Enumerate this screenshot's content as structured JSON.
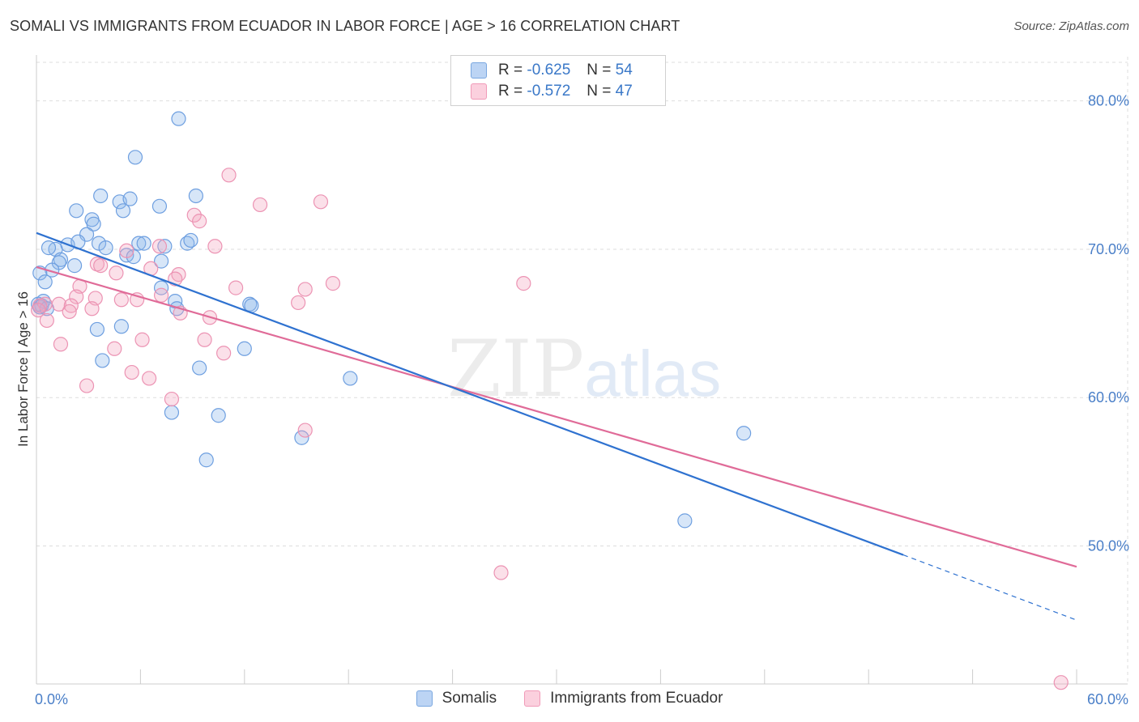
{
  "header": {
    "title": "SOMALI VS IMMIGRANTS FROM ECUADOR IN LABOR FORCE | AGE > 16 CORRELATION CHART",
    "source": "Source: ZipAtlas.com"
  },
  "legend_top": {
    "rows": [
      {
        "r_label": "R =",
        "r_value": "-0.625",
        "n_label": "N =",
        "n_value": "54"
      },
      {
        "r_label": "R =",
        "r_value": "-0.572",
        "n_label": "N =",
        "n_value": "47"
      }
    ]
  },
  "legend_bottom": {
    "items": [
      {
        "label": "Somalis"
      },
      {
        "label": "Immigrants from Ecuador"
      }
    ]
  },
  "watermark": {
    "zip": "ZIP",
    "atlas": "atlas"
  },
  "chart_data": {
    "type": "scatter",
    "ylabel": "In Labor Force | Age > 16",
    "xlabel": "",
    "xlim": [
      0,
      60
    ],
    "ylim": [
      40.7,
      82.6
    ],
    "x_tick_labels": [
      {
        "value": 0,
        "label": "0.0%"
      },
      {
        "value": 60,
        "label": "60.0%"
      }
    ],
    "y_tick_labels": [
      {
        "value": 50,
        "label": "50.0%"
      },
      {
        "value": 60,
        "label": "60.0%"
      },
      {
        "value": 70,
        "label": "70.0%"
      },
      {
        "value": 80,
        "label": "80.0%"
      }
    ],
    "grid": true,
    "legend_position": "top-center",
    "colors": {
      "somalis": "#8db8ec",
      "ecuador": "#f4a5c0",
      "somalis_line": "#2f72d0",
      "ecuador_line": "#e06b98"
    },
    "series": [
      {
        "name": "Somalis",
        "trend": {
          "x": [
            0,
            50
          ],
          "y": [
            71.1,
            49.4
          ],
          "dashed_to": [
            60,
            45.0
          ]
        },
        "points": [
          [
            8.2,
            78.8
          ],
          [
            5.7,
            76.2
          ],
          [
            3.7,
            73.6
          ],
          [
            4.8,
            73.2
          ],
          [
            5.4,
            73.4
          ],
          [
            7.1,
            72.9
          ],
          [
            9.2,
            73.6
          ],
          [
            2.3,
            72.6
          ],
          [
            5.0,
            72.6
          ],
          [
            3.2,
            72.0
          ],
          [
            3.3,
            71.7
          ],
          [
            2.9,
            71.0
          ],
          [
            1.8,
            70.3
          ],
          [
            2.4,
            70.5
          ],
          [
            3.6,
            70.4
          ],
          [
            5.9,
            70.4
          ],
          [
            6.2,
            70.4
          ],
          [
            7.4,
            70.2
          ],
          [
            8.7,
            70.4
          ],
          [
            8.9,
            70.6
          ],
          [
            1.1,
            70.0
          ],
          [
            0.7,
            70.1
          ],
          [
            4.0,
            70.1
          ],
          [
            5.2,
            69.6
          ],
          [
            5.6,
            69.5
          ],
          [
            7.2,
            69.2
          ],
          [
            1.4,
            69.3
          ],
          [
            1.3,
            69.1
          ],
          [
            2.2,
            68.9
          ],
          [
            0.9,
            68.6
          ],
          [
            0.2,
            68.4
          ],
          [
            0.5,
            67.8
          ],
          [
            7.2,
            67.4
          ],
          [
            8.0,
            66.5
          ],
          [
            8.1,
            66.0
          ],
          [
            12.3,
            66.3
          ],
          [
            12.4,
            66.2
          ],
          [
            0.1,
            66.3
          ],
          [
            0.3,
            66.2
          ],
          [
            3.5,
            64.6
          ],
          [
            4.9,
            64.8
          ],
          [
            12.0,
            63.3
          ],
          [
            3.8,
            62.5
          ],
          [
            9.4,
            62.0
          ],
          [
            18.1,
            61.3
          ],
          [
            7.8,
            59.0
          ],
          [
            10.5,
            58.8
          ],
          [
            15.3,
            57.3
          ],
          [
            40.8,
            57.6
          ],
          [
            9.8,
            55.8
          ],
          [
            37.4,
            51.7
          ],
          [
            0.2,
            66.1
          ],
          [
            0.4,
            66.5
          ],
          [
            0.6,
            66.0
          ]
        ]
      },
      {
        "name": "Immigrants from Ecuador",
        "trend": {
          "x": [
            0,
            60
          ],
          "y": [
            68.8,
            48.6
          ]
        },
        "points": [
          [
            11.1,
            75.0
          ],
          [
            16.4,
            73.2
          ],
          [
            12.9,
            73.0
          ],
          [
            9.1,
            72.3
          ],
          [
            9.4,
            71.9
          ],
          [
            10.3,
            70.2
          ],
          [
            7.1,
            70.2
          ],
          [
            5.2,
            69.9
          ],
          [
            3.5,
            69.0
          ],
          [
            3.7,
            68.9
          ],
          [
            6.6,
            68.7
          ],
          [
            4.6,
            68.4
          ],
          [
            8.2,
            68.3
          ],
          [
            8.0,
            68.0
          ],
          [
            28.1,
            67.7
          ],
          [
            17.1,
            67.7
          ],
          [
            11.5,
            67.4
          ],
          [
            15.5,
            67.3
          ],
          [
            2.5,
            67.5
          ],
          [
            7.2,
            66.9
          ],
          [
            2.3,
            66.8
          ],
          [
            3.4,
            66.7
          ],
          [
            4.9,
            66.6
          ],
          [
            5.8,
            66.6
          ],
          [
            15.1,
            66.4
          ],
          [
            0.5,
            66.3
          ],
          [
            0.2,
            66.2
          ],
          [
            1.3,
            66.3
          ],
          [
            2.0,
            66.2
          ],
          [
            3.2,
            66.0
          ],
          [
            1.9,
            65.8
          ],
          [
            8.3,
            65.7
          ],
          [
            10.0,
            65.4
          ],
          [
            0.6,
            65.2
          ],
          [
            6.1,
            63.9
          ],
          [
            9.7,
            63.9
          ],
          [
            1.4,
            63.6
          ],
          [
            4.5,
            63.3
          ],
          [
            10.8,
            63.0
          ],
          [
            5.5,
            61.7
          ],
          [
            6.5,
            61.3
          ],
          [
            2.9,
            60.8
          ],
          [
            7.8,
            59.9
          ],
          [
            15.5,
            57.8
          ],
          [
            26.8,
            48.2
          ],
          [
            59.1,
            40.8
          ],
          [
            0.1,
            65.9
          ]
        ]
      }
    ]
  }
}
